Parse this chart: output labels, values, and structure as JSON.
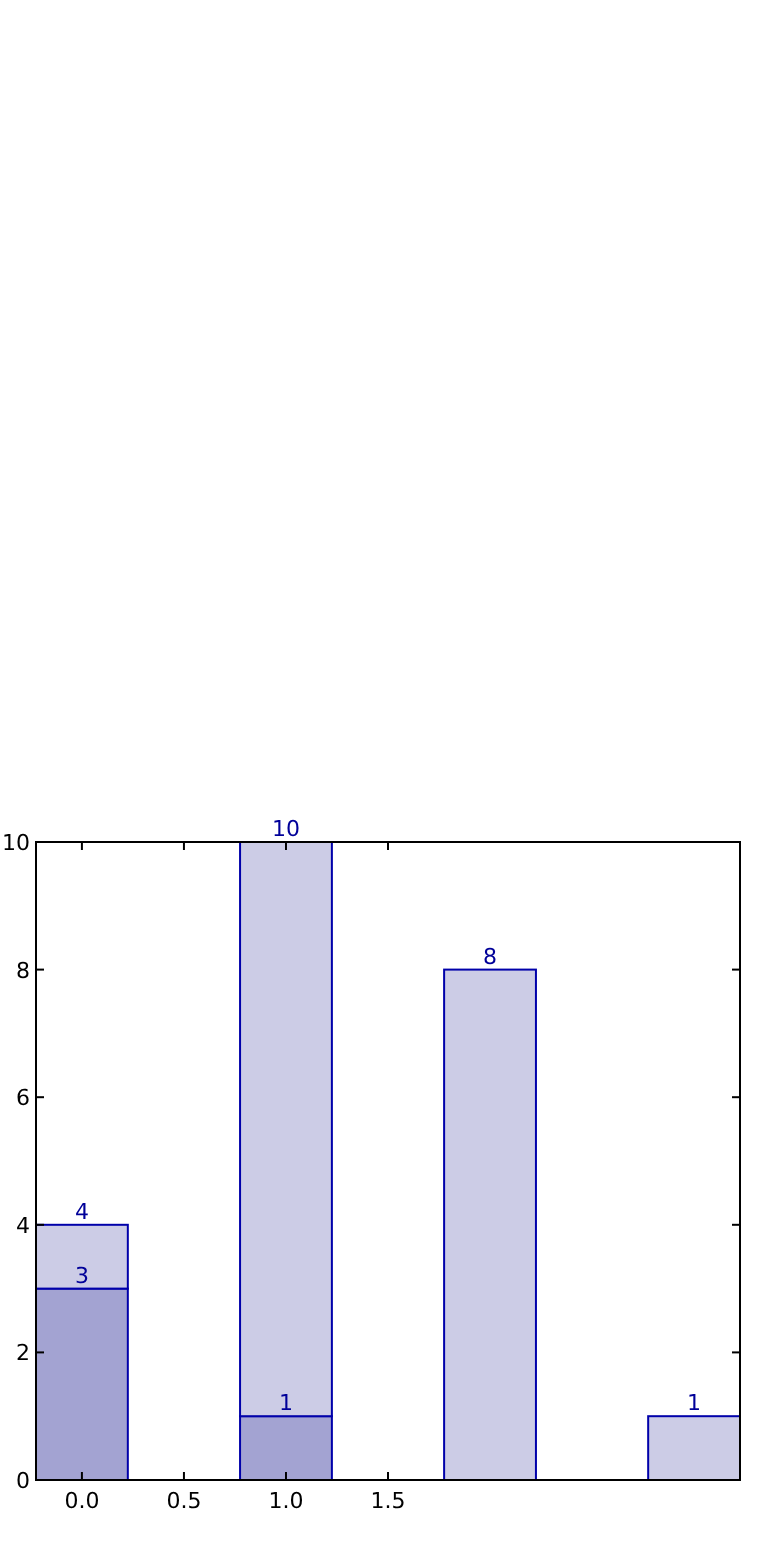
{
  "chart_data": {
    "type": "bar",
    "x": [
      0,
      1,
      2,
      3
    ],
    "stacked": true,
    "series": [
      {
        "color": "#a3a3d2",
        "values": [
          3,
          1,
          null,
          null
        ],
        "value_labels": [
          "3",
          "1",
          null,
          null
        ]
      },
      {
        "color": "#cccce6",
        "values": [
          1,
          9,
          8,
          1
        ]
      }
    ],
    "totals": [
      "4",
      "10",
      "8",
      "1"
    ],
    "xlim": [
      -0.225,
      3.225
    ],
    "xticks": [
      {
        "value": 0,
        "label": "0.0"
      },
      {
        "value": 0.5,
        "label": "0.5"
      },
      {
        "value": 1,
        "label": "1.0"
      },
      {
        "value": 1.5,
        "label": "1.5"
      }
    ],
    "ylim": [
      0,
      10
    ],
    "yticks": [
      0,
      2,
      4,
      6,
      8,
      10
    ]
  }
}
